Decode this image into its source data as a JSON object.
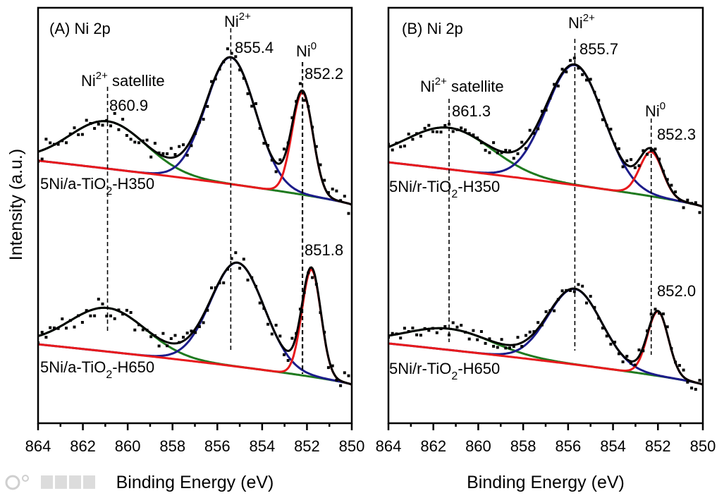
{
  "watermark": "1CO 大数跨境",
  "ylabel": "Intensity (a.u.)",
  "chart_data": [
    {
      "panel": "A",
      "type": "line",
      "title": "(A) Ni 2p",
      "xlabel": "Binding Energy (eV)",
      "ylabel": "Intensity (a.u.)",
      "xlim": [
        864,
        850
      ],
      "ylim": [
        0,
        100
      ],
      "xticks": [
        "864",
        "862",
        "860",
        "858",
        "856",
        "854",
        "852",
        "850"
      ],
      "grid": false,
      "annotations": [
        {
          "main": "Ni",
          "sup": "2+",
          "suffix": " satellite",
          "value": "860.9",
          "center": 860.9
        },
        {
          "main": "Ni",
          "sup": "2+",
          "suffix": "",
          "value": "855.4",
          "center": 855.4
        },
        {
          "main": "Ni",
          "sup": "0",
          "suffix": "",
          "value": "852.2",
          "center": 852.2
        }
      ],
      "spectra": [
        {
          "sample": {
            "pre": "5Ni/a-TiO",
            "sub": "2",
            "post": "-H350"
          },
          "background": {
            "high_be": 63.2,
            "low_be": 52.6
          },
          "noise_amplitude": 2.4,
          "peaks": [
            {
              "name": "Ni2+ satellite",
              "center": 860.9,
              "fwhm": 4.0,
              "amplitude": 11.4,
              "color": "#1f7a1f"
            },
            {
              "name": "Ni2+",
              "center": 855.4,
              "fwhm": 2.6,
              "amplitude": 30.5,
              "color": "#1c1c8a"
            },
            {
              "name": "Ni0",
              "center": 852.2,
              "fwhm": 1.1,
              "amplitude": 24.6,
              "color": "#e8191c"
            }
          ]
        },
        {
          "sample": {
            "pre": "5Ni/a-TiO",
            "sub": "2",
            "post": "-H650"
          },
          "value_label": "851.8",
          "background": {
            "high_be": 19.0,
            "low_be": 9.3
          },
          "noise_amplitude": 2.4,
          "peaks": [
            {
              "name": "Ni2+ satellite",
              "center": 860.9,
              "fwhm": 4.0,
              "amplitude": 10.5,
              "color": "#1f7a1f"
            },
            {
              "name": "Ni2+",
              "center": 855.1,
              "fwhm": 2.8,
              "amplitude": 25.0,
              "color": "#1c1c8a"
            },
            {
              "name": "Ni0",
              "center": 851.8,
              "fwhm": 1.0,
              "amplitude": 25.8,
              "color": "#e8191c"
            }
          ]
        }
      ]
    },
    {
      "panel": "B",
      "type": "line",
      "title": "(B) Ni 2p",
      "xlabel": "Binding Energy (eV)",
      "ylabel": "Intensity (a.u.)",
      "xlim": [
        864,
        850
      ],
      "ylim": [
        0,
        100
      ],
      "xticks": [
        "864",
        "862",
        "860",
        "858",
        "856",
        "854",
        "852",
        "850"
      ],
      "grid": false,
      "annotations": [
        {
          "main": "Ni",
          "sup": "2+",
          "suffix": " satellite",
          "value": "861.3",
          "center": 861.3
        },
        {
          "main": "Ni",
          "sup": "2+",
          "suffix": "",
          "value": "855.7",
          "center": 855.7
        },
        {
          "main": "Ni",
          "sup": "0",
          "suffix": "",
          "value": "852.3",
          "center": 852.3
        }
      ],
      "spectra": [
        {
          "sample": {
            "pre": "5Ni/r-TiO",
            "sub": "2",
            "post": "-H350"
          },
          "background": {
            "high_be": 62.8,
            "low_be": 52.1
          },
          "noise_amplitude": 1.8,
          "peaks": [
            {
              "name": "Ni2+ satellite",
              "center": 861.3,
              "fwhm": 4.5,
              "amplitude": 10.0,
              "color": "#1f7a1f"
            },
            {
              "name": "Ni2+",
              "center": 855.7,
              "fwhm": 3.0,
              "amplitude": 28.9,
              "color": "#1c1c8a"
            },
            {
              "name": "Ni0",
              "center": 852.3,
              "fwhm": 1.2,
              "amplitude": 10.7,
              "color": "#e8191c"
            }
          ]
        },
        {
          "sample": {
            "pre": "5Ni/r-TiO",
            "sub": "2",
            "post": "-H650"
          },
          "value_label": "852.0",
          "background": {
            "high_be": 19.2,
            "low_be": 9.3
          },
          "noise_amplitude": 1.8,
          "peaks": [
            {
              "name": "Ni2+ satellite",
              "center": 861.3,
              "fwhm": 4.5,
              "amplitude": 5.1,
              "color": "#1f7a1f"
            },
            {
              "name": "Ni2+",
              "center": 855.7,
              "fwhm": 2.8,
              "amplitude": 18.2,
              "color": "#1c1c8a"
            },
            {
              "name": "Ni0",
              "center": 852.0,
              "fwhm": 1.1,
              "amplitude": 15.5,
              "color": "#e8191c"
            }
          ]
        }
      ]
    }
  ]
}
